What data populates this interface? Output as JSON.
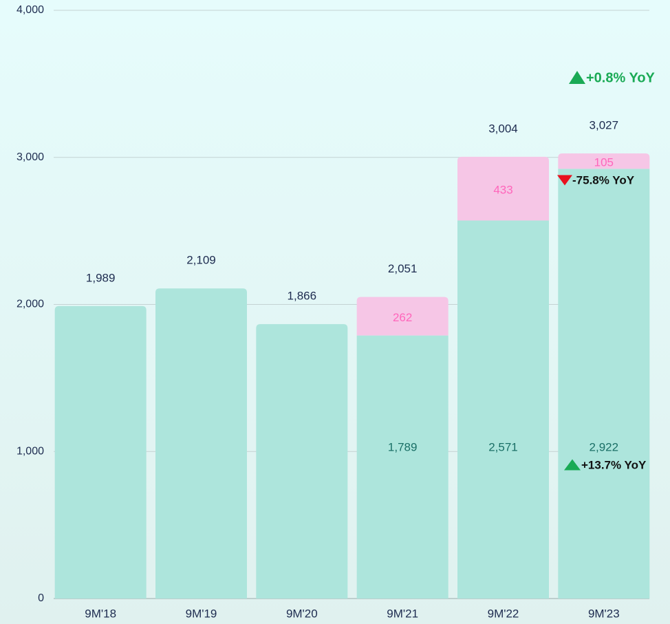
{
  "chart_data": {
    "type": "stacked_bar",
    "categories": [
      "9M'18",
      "9M'19",
      "9M'20",
      "9M'21",
      "9M'22",
      "9M'23"
    ],
    "series": [
      {
        "color": "#ade5dc",
        "label_color": "#1a6f66",
        "values": [
          1989,
          2109,
          1866,
          1789,
          2571,
          2922
        ],
        "value_labels": [
          null,
          null,
          null,
          "1,789",
          "2,571",
          "2,922"
        ]
      },
      {
        "color": "#f6c6e6",
        "label_color": "#ff66bb",
        "values": [
          null,
          null,
          null,
          262,
          433,
          105
        ],
        "value_labels": [
          null,
          null,
          null,
          "262",
          "433",
          "105"
        ]
      }
    ],
    "totals": [
      1989,
      2109,
      1866,
      2051,
      3004,
      3027
    ],
    "total_labels": [
      "1,989",
      "2,109",
      "1,866",
      "2,051",
      "3,004",
      "3,027"
    ],
    "ylim": [
      0,
      4000
    ],
    "yticks": [
      0,
      {
        "value": 1000,
        "label": "1,000"
      },
      {
        "value": 2000,
        "label": "2,000"
      },
      {
        "value": 3000,
        "label": "3,000"
      },
      {
        "value": 4000,
        "label": "4,000"
      }
    ],
    "grid": true,
    "annotations": [
      {
        "text": "+0.8% YoY",
        "color": "#1aaa55",
        "direction": "up"
      },
      {
        "text": "-75.8% YoY",
        "color": "#e8101e",
        "direction": "down"
      },
      {
        "text": "+13.7% YoY",
        "color": "#1aaa55",
        "direction": "up"
      }
    ]
  }
}
